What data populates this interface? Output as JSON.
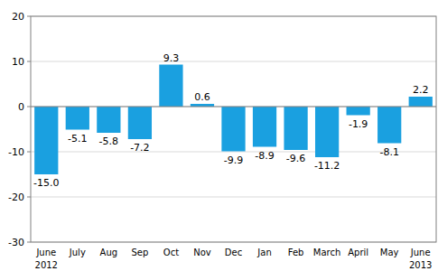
{
  "chart_data": {
    "type": "bar",
    "categories": [
      "June",
      "July",
      "Aug",
      "Sep",
      "Oct",
      "Nov",
      "Dec",
      "Jan",
      "Feb",
      "March",
      "April",
      "May",
      "June"
    ],
    "values": [
      -15.0,
      -5.1,
      -5.8,
      -7.2,
      9.3,
      0.6,
      -9.9,
      -8.9,
      -9.6,
      -11.2,
      -1.9,
      -8.1,
      2.2
    ],
    "value_labels": [
      "-15.0",
      "-5.1",
      "-5.8",
      "-7.2",
      "9.3",
      "0.6",
      "-9.9",
      "-8.9",
      "-9.6",
      "-11.2",
      "-1.9",
      "-8.1",
      "2.2"
    ],
    "annotations": [
      "2012",
      "2013"
    ],
    "color": "#1aa0e0",
    "ylim": [
      -30,
      20
    ],
    "yticks": [
      -30,
      -20,
      -10,
      0,
      10,
      20
    ],
    "grid": true,
    "data_labels": true
  }
}
